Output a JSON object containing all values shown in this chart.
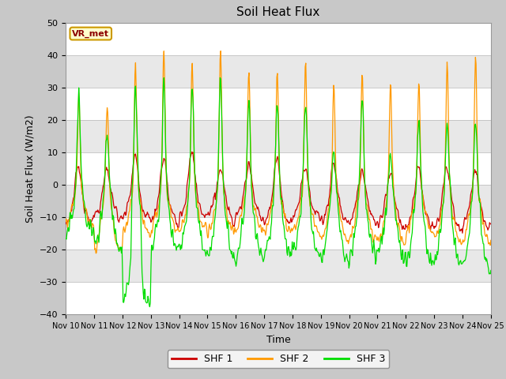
{
  "title": "Soil Heat Flux",
  "xlabel": "Time",
  "ylabel": "Soil Heat Flux (W/m2)",
  "ylim": [
    -40,
    50
  ],
  "shf1_color": "#cc0000",
  "shf2_color": "#ff9900",
  "shf3_color": "#00dd00",
  "annotation_text": "VR_met",
  "annotation_bg": "#ffffcc",
  "annotation_border": "#cc9900",
  "yticks": [
    -40,
    -30,
    -20,
    -10,
    0,
    10,
    20,
    30,
    40,
    50
  ],
  "xtick_labels": [
    "Nov 10",
    "Nov 11",
    "Nov 12",
    "Nov 13",
    "Nov 14",
    "Nov 15",
    "Nov 16",
    "Nov 17",
    "Nov 18",
    "Nov 19",
    "Nov 20",
    "Nov 21",
    "Nov 22",
    "Nov 23",
    "Nov 24",
    "Nov 25"
  ],
  "band_colors": [
    "#ffffff",
    "#e8e8e8"
  ],
  "fig_bg": "#c8c8c8",
  "plot_bg": "#ffffff"
}
